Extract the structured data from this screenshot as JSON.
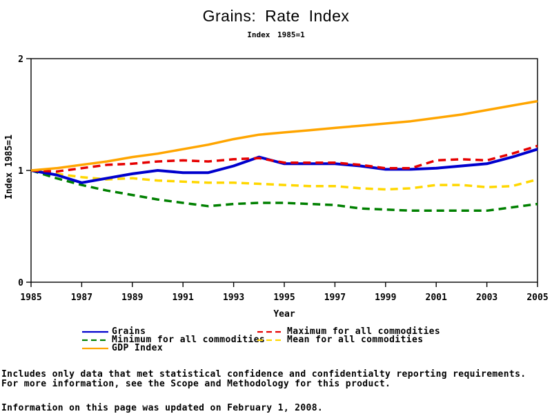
{
  "page": {
    "background": "#ffffff"
  },
  "chart_data": {
    "type": "line",
    "title": "Grains: Rate Index",
    "subtitle": "Index 1985=1",
    "xlabel": "Year",
    "ylabel": "Index 1985=1",
    "xlim": [
      1985,
      2005
    ],
    "ylim": [
      0,
      2
    ],
    "x_ticks": [
      1985,
      1987,
      1989,
      1991,
      1993,
      1995,
      1997,
      1999,
      2001,
      2003,
      2005
    ],
    "y_ticks": [
      0,
      1,
      2
    ],
    "grid": false,
    "frame": true,
    "legend_position": "bottom",
    "x": [
      1985,
      1986,
      1987,
      1988,
      1989,
      1990,
      1991,
      1992,
      1993,
      1994,
      1995,
      1996,
      1997,
      1998,
      1999,
      2000,
      2001,
      2002,
      2003,
      2004,
      2005
    ],
    "series": [
      {
        "name": "Grains",
        "color": "#0000cd",
        "style": "solid",
        "z": 2,
        "values": [
          1.0,
          0.96,
          0.89,
          0.93,
          0.97,
          1.0,
          0.98,
          0.98,
          1.04,
          1.12,
          1.06,
          1.06,
          1.06,
          1.04,
          1.01,
          1.01,
          1.02,
          1.04,
          1.06,
          1.12,
          1.19
        ]
      },
      {
        "name": "Maximum for all commodities",
        "color": "#e60000",
        "style": "dashed",
        "z": 3,
        "values": [
          1.0,
          0.99,
          1.02,
          1.05,
          1.06,
          1.08,
          1.09,
          1.08,
          1.1,
          1.11,
          1.07,
          1.07,
          1.07,
          1.05,
          1.02,
          1.02,
          1.09,
          1.1,
          1.09,
          1.15,
          1.22
        ]
      },
      {
        "name": "Minimum for all commodities",
        "color": "#008000",
        "style": "dashed",
        "z": 1,
        "values": [
          1.0,
          0.93,
          0.87,
          0.82,
          0.78,
          0.74,
          0.71,
          0.68,
          0.7,
          0.71,
          0.71,
          0.7,
          0.69,
          0.66,
          0.65,
          0.64,
          0.64,
          0.64,
          0.64,
          0.67,
          0.7
        ]
      },
      {
        "name": "Mean for all commodities",
        "color": "#ffd700",
        "style": "dashed",
        "z": 0,
        "values": [
          1.0,
          0.97,
          0.94,
          0.92,
          0.93,
          0.91,
          0.9,
          0.89,
          0.89,
          0.88,
          0.87,
          0.86,
          0.86,
          0.84,
          0.83,
          0.84,
          0.87,
          0.87,
          0.85,
          0.86,
          0.92
        ]
      },
      {
        "name": "GDP Index",
        "color": "#ffa500",
        "style": "solid",
        "z": 4,
        "values": [
          1.0,
          1.02,
          1.05,
          1.08,
          1.12,
          1.15,
          1.19,
          1.23,
          1.28,
          1.32,
          1.34,
          1.36,
          1.38,
          1.4,
          1.42,
          1.44,
          1.47,
          1.5,
          1.54,
          1.58,
          1.62
        ]
      }
    ]
  },
  "footnotes": {
    "line1": "Includes only data that met statistical confidence and confidentialty reporting requirements.",
    "line2": "For more information, see the Scope and Methodology for this product.",
    "updated": "Information on this page was updated on February 1, 2008."
  }
}
